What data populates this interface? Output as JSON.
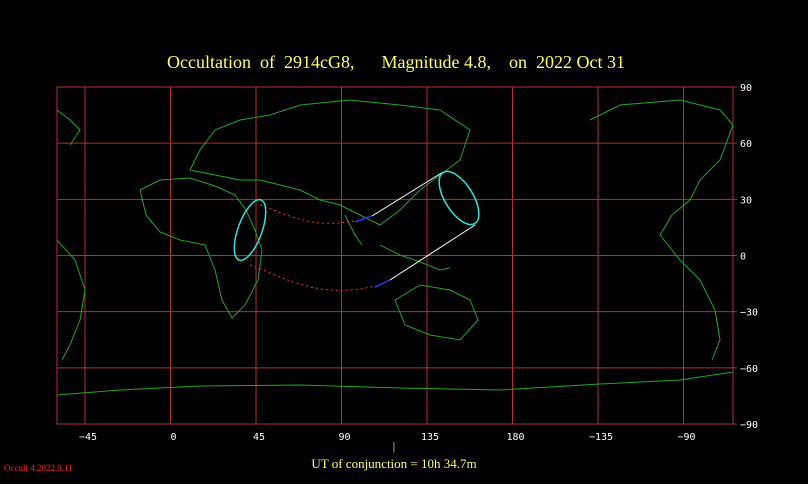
{
  "title": "Occultation  of  2914cG8,      Magnitude 4.8,    on  2022 Oct 31",
  "longitude_labels": [
    "−45",
    "0",
    "45",
    "90",
    "135",
    "180",
    "−135",
    "−90"
  ],
  "latitude_labels": [
    "90",
    "60",
    "30",
    "0",
    "−30",
    "−60",
    "−90"
  ],
  "conjunction_marker": "|",
  "conjunction": "UT of conjunction = 10h 34.7m",
  "version": "Occult 4.2022.9.11"
}
